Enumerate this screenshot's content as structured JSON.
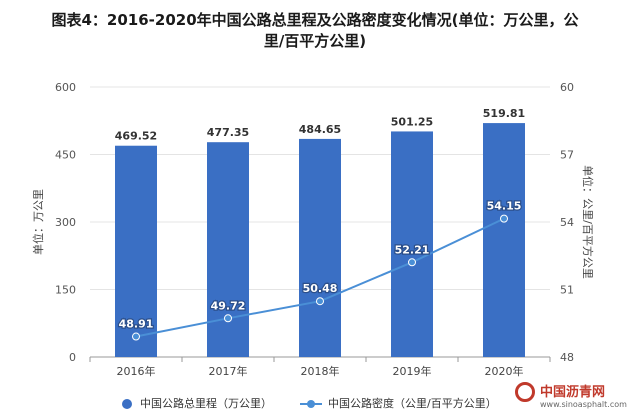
{
  "title_line1": "图表4：2016-2020年中国公路总里程及公路密度变化情况(单位：万公里，公",
  "title_line2": "里/百平方公里)",
  "chart_data": {
    "type": "bar",
    "categories": [
      "2016年",
      "2017年",
      "2018年",
      "2019年",
      "2020年"
    ],
    "series": [
      {
        "name": "中国公路总里程（万公里）",
        "type": "bar",
        "axis": "left",
        "values": [
          469.52,
          477.35,
          484.65,
          501.25,
          519.81
        ],
        "color": "#3a6fc4"
      },
      {
        "name": "中国公路密度（公里/百平方公里）",
        "type": "line",
        "axis": "right",
        "values": [
          48.91,
          49.72,
          50.48,
          52.21,
          54.15
        ],
        "color": "#4a8fd6"
      }
    ],
    "ylabel": "单位：万公里",
    "ylabel_right": "单位：公里/百平方公里",
    "ylim": [
      0,
      600
    ],
    "yticks": [
      0,
      150,
      300,
      450,
      600
    ],
    "ylim_right": [
      48,
      60
    ],
    "yticks_right": [
      48,
      51,
      54,
      57,
      60
    ],
    "legend_position": "bottom"
  },
  "watermark": {
    "source_text": "中国沥青网",
    "source_url": "www.sinoasphalt.com"
  }
}
